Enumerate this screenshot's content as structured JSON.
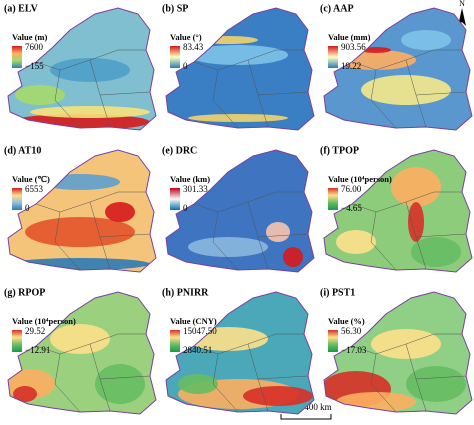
{
  "panels": [
    {
      "label": "(a) ELV",
      "legend_title": "Value (m)",
      "max": "7600",
      "min": "−155"
    },
    {
      "label": "(b) SP",
      "legend_title": "Value (°)",
      "max": "83.43",
      "min": "0"
    },
    {
      "label": "(c) AAP",
      "legend_title": "Value (mm)",
      "max": "903.56",
      "min": "19.22"
    },
    {
      "label": "(d) AT10",
      "legend_title": "Value (℃)",
      "max": "6553",
      "min": "0"
    },
    {
      "label": "(e) DRC",
      "legend_title": "Value (km)",
      "max": "301.33",
      "min": "0"
    },
    {
      "label": "(f) TPOP",
      "legend_title": "Value (10⁴person)",
      "max": "76.00",
      "min": "−4.65"
    },
    {
      "label": "(g) RPOP",
      "legend_title": "Value (10⁴person)",
      "max": "29.52",
      "min": "−12.91"
    },
    {
      "label": "(h) PNIRR",
      "legend_title": "Value (CNY)",
      "max": "15047.50",
      "min": "2840.51"
    },
    {
      "label": "(i) PST1",
      "legend_title": "Value (%)",
      "max": "56.30",
      "min": "−17.03"
    }
  ],
  "north": "N",
  "scale_bar": {
    "start": "0",
    "end": "400 km"
  }
}
